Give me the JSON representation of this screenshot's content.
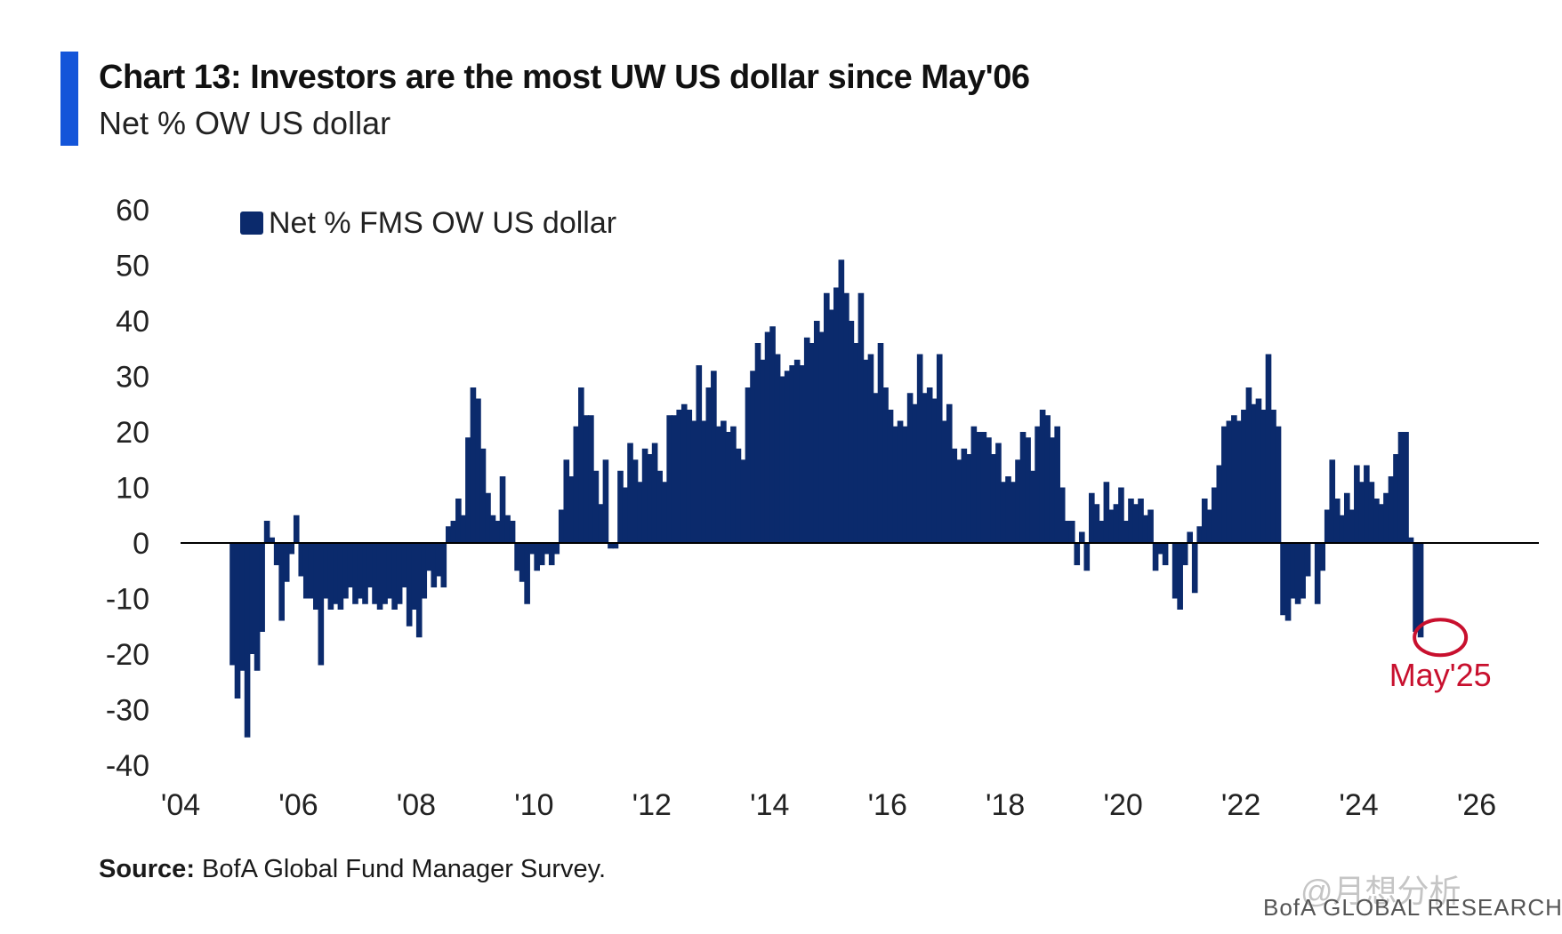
{
  "header": {
    "title": "Chart 13: Investors are the most UW US dollar since May'06",
    "subtitle": "Net % OW US dollar"
  },
  "footer": {
    "source_label": "Source:",
    "source_text": " BofA Global Fund Manager Survey.",
    "brand": "BofA GLOBAL RESEARCH",
    "watermark": "@月想分析"
  },
  "colors": {
    "bar": "#0b2a6c",
    "accent": "#1455d9",
    "annotation": "#c8102e",
    "zero_line": "#000000"
  },
  "chart_data": {
    "type": "bar",
    "title": "",
    "xlabel": "",
    "ylabel": "",
    "legend": [
      "Net % FMS OW US dollar"
    ],
    "legend_position": "top-left",
    "ylim": [
      -40,
      60
    ],
    "yticks": [
      60,
      50,
      40,
      30,
      20,
      10,
      0,
      -10,
      -20,
      -30,
      -40
    ],
    "xlim": [
      2004,
      2026
    ],
    "xticks": [
      {
        "year": 2004,
        "label": "'04"
      },
      {
        "year": 2006,
        "label": "'06"
      },
      {
        "year": 2008,
        "label": "'08"
      },
      {
        "year": 2010,
        "label": "'10"
      },
      {
        "year": 2012,
        "label": "'12"
      },
      {
        "year": 2014,
        "label": "'14"
      },
      {
        "year": 2016,
        "label": "'16"
      },
      {
        "year": 2018,
        "label": "'18"
      },
      {
        "year": 2020,
        "label": "'20"
      },
      {
        "year": 2022,
        "label": "'22"
      },
      {
        "year": 2024,
        "label": "'24"
      },
      {
        "year": 2026,
        "label": "'26"
      }
    ],
    "start": "2004-11",
    "frequency": "monthly",
    "annotation": {
      "label": "May'25",
      "date": "2025-05",
      "value": -17
    },
    "series": [
      {
        "name": "Net % FMS OW US dollar",
        "values": [
          -22,
          -28,
          -23,
          -35,
          -20,
          -23,
          -16,
          4,
          1,
          -4,
          -14,
          -7,
          -2,
          5,
          -6,
          -10,
          -10,
          -12,
          -22,
          -10,
          -12,
          -11,
          -12,
          -10,
          -8,
          -11,
          -10,
          -11,
          -8,
          -11,
          -12,
          -11,
          -10,
          -12,
          -11,
          -8,
          -15,
          -12,
          -17,
          -10,
          -5,
          -8,
          -6,
          -8,
          3,
          4,
          8,
          5,
          19,
          28,
          26,
          17,
          9,
          5,
          4,
          12,
          5,
          4,
          -5,
          -7,
          -11,
          -2,
          -5,
          -4,
          -2,
          -4,
          -2,
          6,
          15,
          12,
          21,
          28,
          23,
          23,
          13,
          7,
          15,
          -1,
          -1,
          13,
          10,
          18,
          15,
          11,
          17,
          16,
          18,
          13,
          11,
          23,
          23,
          24,
          25,
          24,
          22,
          32,
          22,
          28,
          31,
          21,
          22,
          20,
          21,
          17,
          15,
          28,
          31,
          36,
          33,
          38,
          39,
          34,
          30,
          31,
          32,
          33,
          32,
          37,
          36,
          40,
          38,
          45,
          42,
          46,
          51,
          45,
          40,
          36,
          45,
          33,
          34,
          27,
          36,
          28,
          24,
          21,
          22,
          21,
          27,
          25,
          34,
          27,
          28,
          26,
          34,
          22,
          25,
          17,
          15,
          17,
          16,
          21,
          20,
          20,
          19,
          16,
          18,
          11,
          12,
          11,
          15,
          20,
          19,
          13,
          21,
          24,
          23,
          19,
          21,
          10,
          4,
          4,
          -4,
          2,
          -5,
          9,
          7,
          4,
          11,
          6,
          7,
          10,
          4,
          8,
          7,
          8,
          5,
          6,
          -5,
          -2,
          -4,
          0,
          -10,
          -12,
          -4,
          2,
          -9,
          3,
          8,
          6,
          10,
          14,
          21,
          22,
          23,
          22,
          24,
          28,
          25,
          26,
          24,
          34,
          24,
          21,
          -13,
          -14,
          -10,
          -11,
          -10,
          -6,
          0,
          -11,
          -5,
          6,
          15,
          8,
          5,
          9,
          6,
          14,
          11,
          14,
          11,
          8,
          7,
          9,
          12,
          16,
          20,
          20,
          1,
          -16,
          -17
        ]
      }
    ]
  }
}
